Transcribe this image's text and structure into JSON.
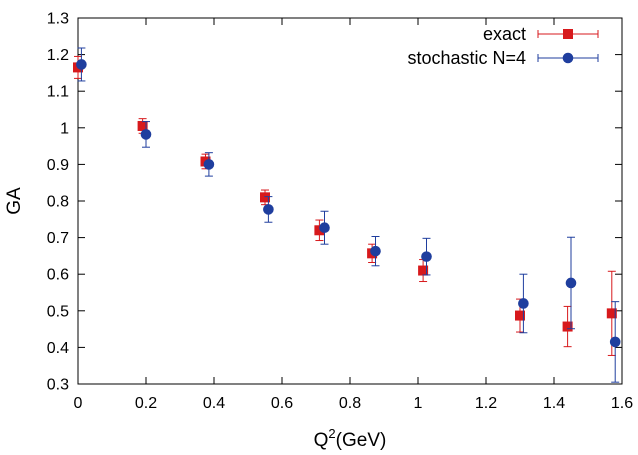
{
  "chart_data": {
    "type": "scatter",
    "xlabel": "Q",
    "xlabel_sup": "2",
    "xlabel_unit": "(GeV)",
    "ylabel": "GA",
    "xlim": [
      0,
      1.6
    ],
    "ylim": [
      0.3,
      1.3
    ],
    "xticks": [
      "0",
      "0.2",
      "0.4",
      "0.6",
      "0.8",
      "1",
      "1.2",
      "1.4",
      "1.6"
    ],
    "yticks": [
      "0.3",
      "0.4",
      "0.5",
      "0.6",
      "0.7",
      "0.8",
      "0.9",
      "1",
      "1.1",
      "1.2",
      "1.3"
    ],
    "legend_position": "top-right",
    "grid": false,
    "error_bars": true,
    "series": [
      {
        "name": "exact",
        "marker": "square",
        "color": "#d7191c",
        "x": [
          0.0,
          0.19,
          0.375,
          0.55,
          0.71,
          0.865,
          1.015,
          1.3,
          1.44,
          1.57
        ],
        "y": [
          1.165,
          1.005,
          0.908,
          0.81,
          0.72,
          0.657,
          0.61,
          0.487,
          0.457,
          0.493
        ],
        "yerr": [
          0.03,
          0.02,
          0.02,
          0.02,
          0.028,
          0.025,
          0.03,
          0.045,
          0.055,
          0.115
        ]
      },
      {
        "name": "stochastic N=4",
        "marker": "circle",
        "color": "#1f3e9e",
        "x": [
          0.01,
          0.2,
          0.385,
          0.56,
          0.725,
          0.875,
          1.025,
          1.31,
          1.45,
          1.58
        ],
        "y": [
          1.173,
          0.982,
          0.9,
          0.777,
          0.727,
          0.663,
          0.648,
          0.52,
          0.576,
          0.415
        ],
        "yerr": [
          0.045,
          0.035,
          0.032,
          0.035,
          0.045,
          0.04,
          0.05,
          0.08,
          0.125,
          0.11
        ]
      }
    ]
  }
}
